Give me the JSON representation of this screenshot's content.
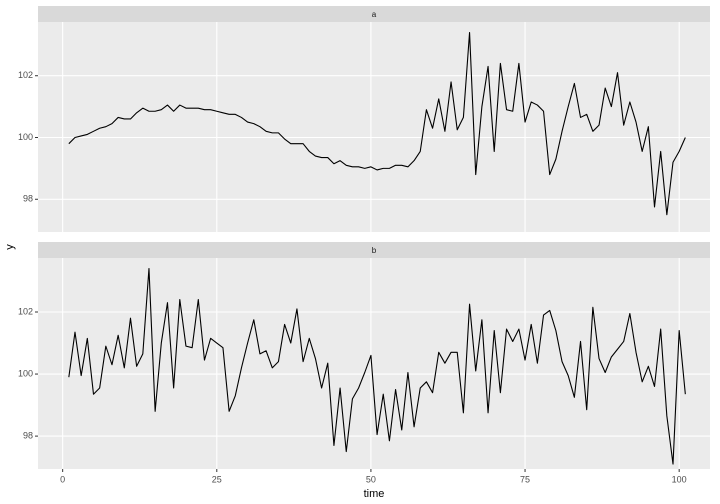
{
  "chart_data": {
    "type": "line",
    "x_label": "time",
    "y_label": "y",
    "xlim": [
      -4,
      105
    ],
    "xticks": [
      0,
      25,
      50,
      75,
      100
    ],
    "ylim": [
      96.94,
      103.74
    ],
    "yticks": [
      98,
      100,
      102
    ],
    "grid": true,
    "color": "#000000",
    "x": [
      1,
      2,
      3,
      4,
      5,
      6,
      7,
      8,
      9,
      10,
      11,
      12,
      13,
      14,
      15,
      16,
      17,
      18,
      19,
      20,
      21,
      22,
      23,
      24,
      25,
      26,
      27,
      28,
      29,
      30,
      31,
      32,
      33,
      34,
      35,
      36,
      37,
      38,
      39,
      40,
      41,
      42,
      43,
      44,
      45,
      46,
      47,
      48,
      49,
      50,
      51,
      52,
      53,
      54,
      55,
      56,
      57,
      58,
      59,
      60,
      61,
      62,
      63,
      64,
      65,
      66,
      67,
      68,
      69,
      70,
      71,
      72,
      73,
      74,
      75,
      76,
      77,
      78,
      79,
      80,
      81,
      82,
      83,
      84,
      85,
      86,
      87,
      88,
      89,
      90,
      91,
      92,
      93,
      94,
      95,
      96,
      97,
      98,
      99,
      100,
      101
    ],
    "facets": [
      {
        "title": "a",
        "values": [
          99.8,
          100.0,
          100.05,
          100.1,
          100.2,
          100.3,
          100.35,
          100.45,
          100.65,
          100.6,
          100.6,
          100.8,
          100.95,
          100.85,
          100.85,
          100.9,
          101.05,
          100.85,
          101.05,
          100.95,
          100.95,
          100.95,
          100.9,
          100.9,
          100.85,
          100.8,
          100.75,
          100.75,
          100.65,
          100.5,
          100.45,
          100.35,
          100.2,
          100.15,
          100.15,
          99.95,
          99.8,
          99.8,
          99.8,
          99.55,
          99.4,
          99.35,
          99.35,
          99.15,
          99.25,
          99.1,
          99.05,
          99.05,
          99.0,
          99.05,
          98.95,
          99.0,
          99.0,
          99.1,
          99.1,
          99.05,
          99.25,
          99.55,
          100.9,
          100.3,
          101.25,
          100.2,
          101.8,
          100.25,
          100.65,
          103.4,
          98.8,
          101.0,
          102.3,
          99.55,
          102.4,
          100.9,
          100.85,
          102.4,
          100.5,
          101.15,
          101.05,
          100.85,
          98.8,
          99.3,
          100.2,
          101.0,
          101.75,
          100.65,
          100.75,
          100.2,
          100.4,
          101.6,
          101.0,
          102.1,
          100.4,
          101.15,
          100.5,
          99.55,
          100.35,
          97.75,
          99.55,
          97.5,
          99.2,
          99.55,
          100.0
        ]
      },
      {
        "title": "b",
        "values": [
          99.9,
          101.35,
          99.95,
          101.15,
          99.35,
          99.55,
          100.9,
          100.3,
          101.25,
          100.2,
          101.8,
          100.25,
          100.65,
          103.4,
          98.8,
          101.0,
          102.3,
          99.55,
          102.4,
          100.9,
          100.85,
          102.4,
          100.45,
          101.15,
          101.0,
          100.85,
          98.8,
          99.3,
          100.2,
          101.0,
          101.75,
          100.65,
          100.75,
          100.2,
          100.4,
          101.6,
          101.0,
          102.1,
          100.4,
          101.15,
          100.5,
          99.55,
          100.35,
          97.7,
          99.55,
          97.5,
          99.2,
          99.55,
          100.05,
          100.6,
          98.05,
          99.35,
          97.85,
          99.5,
          98.2,
          100.05,
          98.3,
          99.55,
          99.75,
          99.4,
          100.7,
          100.35,
          100.7,
          100.7,
          98.75,
          102.25,
          100.1,
          101.75,
          98.75,
          101.4,
          99.4,
          101.45,
          101.05,
          101.45,
          100.45,
          101.6,
          100.35,
          101.9,
          102.05,
          101.4,
          100.4,
          99.95,
          99.25,
          101.05,
          98.85,
          102.15,
          100.5,
          100.05,
          100.55,
          100.8,
          101.05,
          101.95,
          100.7,
          99.75,
          100.25,
          99.6,
          101.45,
          98.65,
          97.1,
          101.4,
          99.35
        ]
      }
    ]
  }
}
